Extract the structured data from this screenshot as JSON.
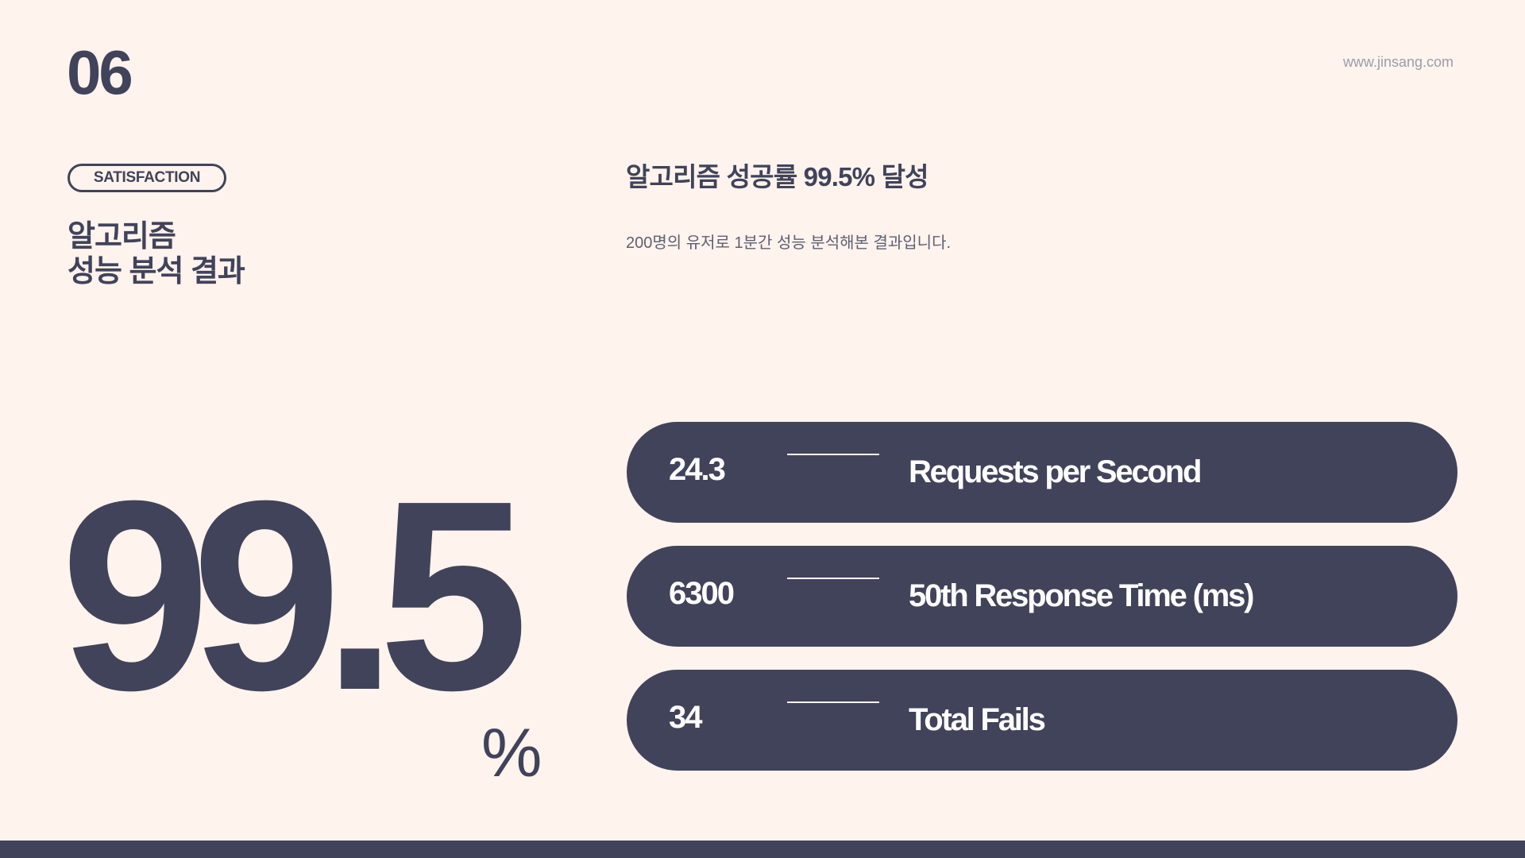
{
  "page": {
    "number": "06",
    "url": "www.jinsang.com"
  },
  "section": {
    "badge": "SATISFACTION",
    "title_line1": "알고리즘",
    "title_line2": "성능 분석 결과"
  },
  "content": {
    "headline": "알고리즘 성공률 99.5% 달성",
    "description": "200명의 유저로 1분간 성능 분석해본 결과입니다."
  },
  "big_figure": {
    "value": "99.5",
    "unit": "%"
  },
  "stats": [
    {
      "value": "24.3",
      "label": "Requests per Second"
    },
    {
      "value": "6300",
      "label": "50th Response Time (ms)"
    },
    {
      "value": "34",
      "label": "Total Fails"
    }
  ],
  "colors": {
    "background": "#FFF3ED",
    "primary": "#40435A",
    "muted": "#9B9DAA"
  }
}
